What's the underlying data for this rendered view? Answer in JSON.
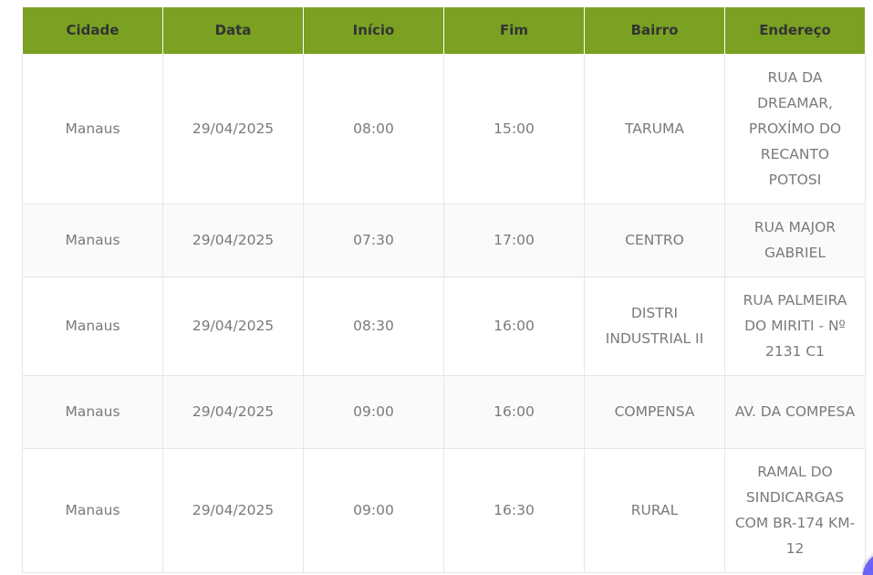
{
  "table": {
    "headers": [
      "Cidade",
      "Data",
      "Início",
      "Fim",
      "Bairro",
      "Endereço"
    ],
    "rows": [
      [
        "Manaus",
        "29/04/2025",
        "08:00",
        "15:00",
        "TARUMA",
        "RUA DA DREAMAR, PROXÍMO DO RECANTO POTOSI"
      ],
      [
        "Manaus",
        "29/04/2025",
        "07:30",
        "17:00",
        "CENTRO",
        "RUA MAJOR GABRIEL"
      ],
      [
        "Manaus",
        "29/04/2025",
        "08:30",
        "16:00",
        "DISTRI INDUSTRIAL II",
        "RUA PALMEIRA DO MIRITI - Nº 2131 C1"
      ],
      [
        "Manaus",
        "29/04/2025",
        "09:00",
        "16:00",
        "COMPENSA",
        "AV. DA COMPESA"
      ],
      [
        "Manaus",
        "29/04/2025",
        "09:00",
        "16:30",
        "RURAL",
        "RAMAL DO SINDICARGAS COM BR-174 KM-12"
      ]
    ]
  },
  "colors": {
    "header_bg": "#7aa122",
    "header_text": "#333333",
    "cell_text": "#7a7a7a",
    "chat_button": "#6b63f5"
  }
}
